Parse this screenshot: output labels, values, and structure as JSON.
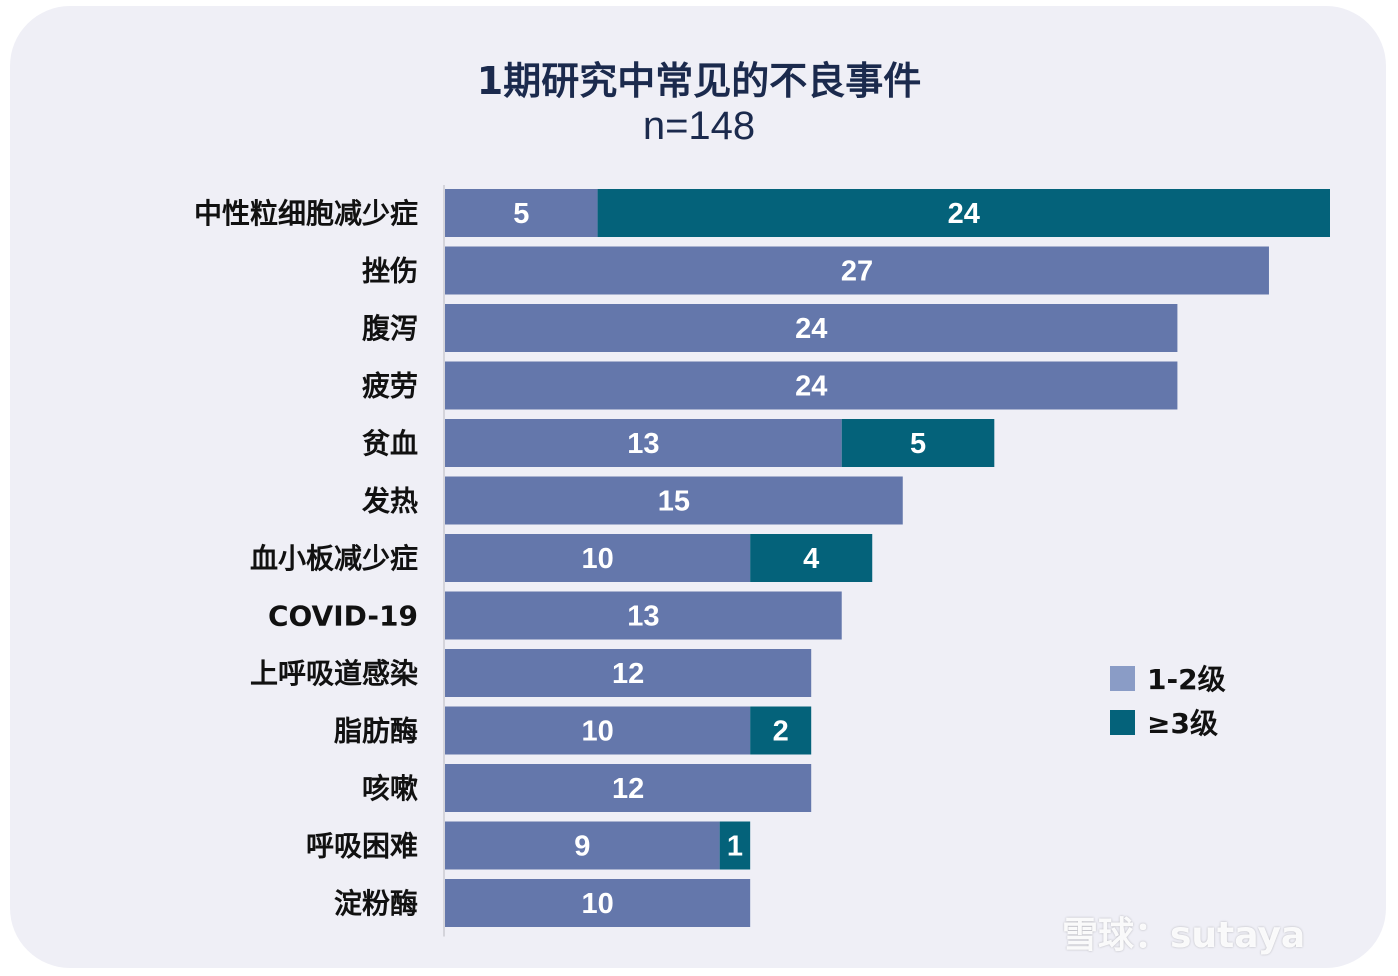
{
  "chart_data": {
    "type": "bar",
    "orientation": "horizontal",
    "stacked": true,
    "title": "1期研究中常见的不良事件",
    "subtitle": "n=148",
    "categories": [
      "中性粒细胞减少症",
      "挫伤",
      "腹泻",
      "疲劳",
      "贫血",
      "发热",
      "血小板减少症",
      "COVID-19",
      "上呼吸道感染",
      "脂肪酶",
      "咳嗽",
      "呼吸困难",
      "淀粉酶"
    ],
    "series": [
      {
        "name": "1-2级",
        "color": "#6477ab",
        "values": [
          5,
          27,
          24,
          24,
          13,
          15,
          10,
          13,
          12,
          10,
          12,
          9,
          10
        ]
      },
      {
        "name": "≥3级",
        "color": "#04627a",
        "values": [
          24,
          0,
          0,
          0,
          5,
          0,
          4,
          0,
          0,
          2,
          0,
          1,
          0
        ]
      }
    ],
    "xlim": [
      0,
      29
    ],
    "legend_position": "right",
    "grid": false
  },
  "legend": {
    "items": [
      {
        "label": "1-2级",
        "color": "#8a9cc6"
      },
      {
        "label": "≥3级",
        "color": "#04627a"
      }
    ]
  },
  "watermark": "雪球：sutaya"
}
